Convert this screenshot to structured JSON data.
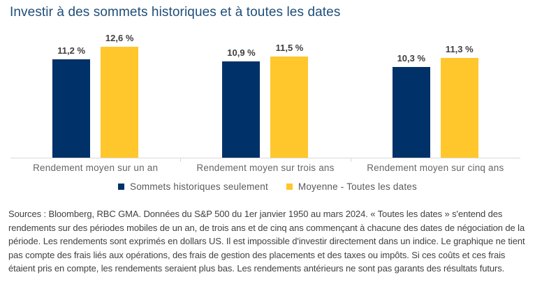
{
  "title": "Investir à des sommets historiques et à toutes les dates",
  "colors": {
    "title_blue": "#1f4e79",
    "navy": "#003168",
    "yellow": "#ffc72c",
    "axis_gray": "#d9d9d9",
    "value_label": "#3f3f3f"
  },
  "chart_data": {
    "type": "bar",
    "title": "Investir à des sommets historiques et à toutes les dates",
    "categories": [
      "Rendement moyen sur un an",
      "Rendement moyen sur trois ans",
      "Rendement moyen sur cinq ans"
    ],
    "series": [
      {
        "name": "Sommets historiques seulement",
        "color": "#003168",
        "values": [
          11.2,
          10.9,
          10.3
        ],
        "value_labels": [
          "11,2 %",
          "10,9 %",
          "10,3 %"
        ]
      },
      {
        "name": "Moyenne - Toutes les dates",
        "color": "#ffc72c",
        "values": [
          12.6,
          11.5,
          11.3
        ],
        "value_labels": [
          "12,6 %",
          "11,5 %",
          "11,3 %"
        ]
      }
    ],
    "xlabel": "",
    "ylabel": "",
    "ylim": [
      0,
      14.8
    ],
    "grid": false,
    "y_axis_visible": false,
    "legend_position": "bottom-center",
    "tick_positions_pct": [
      33.333,
      66.667
    ]
  },
  "source_text": "Sources : Bloomberg, RBC GMA. Données du S&P 500 du 1er janvier 1950 au mars 2024. « Toutes les dates » s'entend des rendements sur des périodes mobiles de un an, de trois ans et de cinq ans commençant à chacune des dates de négociation de la période. Les rendements sont exprimés en dollars US. Il est impossible d'investir directement dans un indice. Le graphique ne tient pas compte des frais liés aux opérations, des frais de gestion des placements et des taxes ou impôts. Si ces coûts et ces frais étaient pris en compte, les rendements seraient plus bas. Les rendements antérieurs ne sont pas garants des résultats futurs."
}
